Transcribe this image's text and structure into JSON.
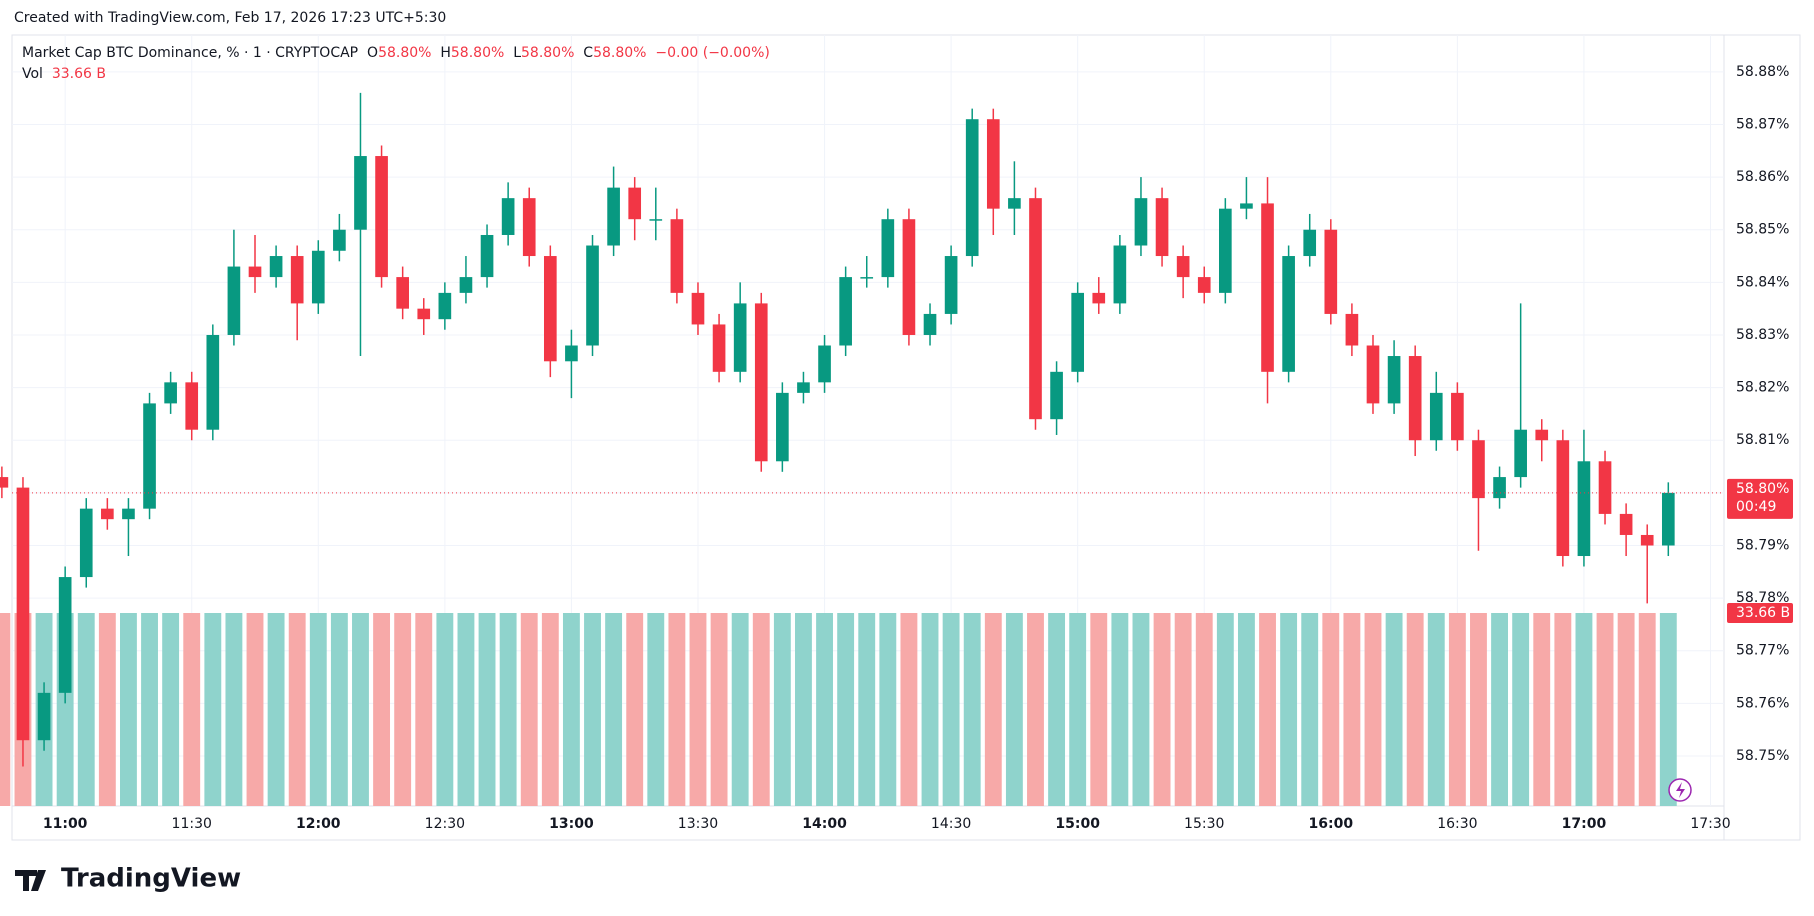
{
  "header": "Created with TradingView.com, Feb 17, 2026 17:23 UTC+5:30",
  "footer": "TradingView",
  "chart_data": {
    "type": "candlestick",
    "legend": {
      "symbol": "Market Cap BTC Dominance, % · 1 · CRYPTOCAP",
      "o_label": "O",
      "o": "58.80%",
      "h_label": "H",
      "h": "58.80%",
      "l_label": "L",
      "l": "58.80%",
      "c_label": "C",
      "c": "58.80%",
      "change": "−0.00 (−0.00%)",
      "vol_label": "Vol",
      "vol": "33.66 B"
    },
    "last_price_label": "58.80%",
    "countdown": "00:49",
    "volume_badge": "33.66 B",
    "up_color": "#089981",
    "down_color": "#f23645",
    "volume_up_color": "#8fd3cc",
    "volume_down_color": "#f7a9a8",
    "grid": true,
    "x": [
      645,
      650,
      655,
      660,
      665,
      670,
      675,
      680,
      685,
      690,
      695,
      700,
      705,
      710,
      715,
      720,
      725,
      730,
      735,
      740,
      745,
      750,
      755,
      760,
      765,
      770,
      775,
      780,
      785,
      790,
      795,
      800,
      805,
      810,
      815,
      820,
      825,
      830,
      835,
      840,
      845,
      850,
      855,
      860,
      865,
      870,
      875,
      880,
      885,
      890,
      895,
      900,
      905,
      910,
      915,
      920,
      925,
      930,
      935,
      940,
      945,
      950,
      955,
      960,
      965,
      970,
      975,
      980,
      985,
      990,
      995,
      1000,
      1005,
      1010,
      1015,
      1020,
      1025,
      1030,
      1035,
      1040
    ],
    "open": [
      58.803,
      58.801,
      58.753,
      58.762,
      58.784,
      58.797,
      58.795,
      58.797,
      58.817,
      58.821,
      58.812,
      58.83,
      58.843,
      58.841,
      58.845,
      58.836,
      58.846,
      58.85,
      58.864,
      58.841,
      58.835,
      58.833,
      58.838,
      58.841,
      58.849,
      58.856,
      58.845,
      58.825,
      58.828,
      58.847,
      58.858,
      58.852,
      58.852,
      58.838,
      58.832,
      58.823,
      58.836,
      58.806,
      58.819,
      58.821,
      58.828,
      58.841,
      58.841,
      58.852,
      58.83,
      58.834,
      58.845,
      58.871,
      58.854,
      58.856,
      58.814,
      58.823,
      58.838,
      58.836,
      58.847,
      58.856,
      58.845,
      58.841,
      58.838,
      58.854,
      58.855,
      58.823,
      58.845,
      58.85,
      58.834,
      58.828,
      58.817,
      58.826,
      58.81,
      58.819,
      58.81,
      58.799,
      58.803,
      58.812,
      58.81,
      58.788,
      58.806,
      58.796,
      58.792,
      58.79
    ],
    "high": [
      58.805,
      58.803,
      58.764,
      58.786,
      58.799,
      58.799,
      58.799,
      58.819,
      58.823,
      58.823,
      58.832,
      58.85,
      58.849,
      58.847,
      58.847,
      58.848,
      58.853,
      58.876,
      58.866,
      58.843,
      58.837,
      58.84,
      58.845,
      58.851,
      58.859,
      58.858,
      58.847,
      58.831,
      58.849,
      58.862,
      58.86,
      58.858,
      58.854,
      58.84,
      58.834,
      58.84,
      58.838,
      58.821,
      58.823,
      58.83,
      58.843,
      58.845,
      58.854,
      58.854,
      58.836,
      58.847,
      58.873,
      58.873,
      58.863,
      58.858,
      58.825,
      58.84,
      58.841,
      58.849,
      58.86,
      58.858,
      58.847,
      58.843,
      58.856,
      58.86,
      58.86,
      58.847,
      58.853,
      58.852,
      58.836,
      58.83,
      58.829,
      58.828,
      58.823,
      58.821,
      58.812,
      58.805,
      58.836,
      58.814,
      58.812,
      58.812,
      58.808,
      58.798,
      58.794,
      58.802
    ],
    "low": [
      58.799,
      58.748,
      58.751,
      58.76,
      58.782,
      58.793,
      58.788,
      58.795,
      58.815,
      58.81,
      58.81,
      58.828,
      58.838,
      58.839,
      58.829,
      58.834,
      58.844,
      58.826,
      58.839,
      58.833,
      58.83,
      58.831,
      58.836,
      58.839,
      58.847,
      58.843,
      58.822,
      58.818,
      58.826,
      58.845,
      58.848,
      58.848,
      58.836,
      58.83,
      58.821,
      58.821,
      58.804,
      58.804,
      58.817,
      58.819,
      58.826,
      58.839,
      58.839,
      58.828,
      58.828,
      58.832,
      58.843,
      58.849,
      58.849,
      58.812,
      58.811,
      58.821,
      58.834,
      58.834,
      58.845,
      58.843,
      58.837,
      58.836,
      58.836,
      58.852,
      58.817,
      58.821,
      58.843,
      58.832,
      58.826,
      58.815,
      58.815,
      58.807,
      58.808,
      58.808,
      58.789,
      58.797,
      58.801,
      58.806,
      58.786,
      58.786,
      58.794,
      58.788,
      58.779,
      58.788
    ],
    "close": [
      58.801,
      58.753,
      58.762,
      58.784,
      58.797,
      58.795,
      58.797,
      58.817,
      58.821,
      58.812,
      58.83,
      58.843,
      58.841,
      58.845,
      58.836,
      58.846,
      58.85,
      58.864,
      58.841,
      58.835,
      58.833,
      58.838,
      58.841,
      58.849,
      58.856,
      58.845,
      58.825,
      58.828,
      58.847,
      58.858,
      58.852,
      58.852,
      58.838,
      58.832,
      58.823,
      58.836,
      58.806,
      58.819,
      58.821,
      58.828,
      58.841,
      58.841,
      58.852,
      58.83,
      58.834,
      58.845,
      58.871,
      58.854,
      58.856,
      58.814,
      58.823,
      58.838,
      58.836,
      58.847,
      58.856,
      58.845,
      58.841,
      58.838,
      58.854,
      58.855,
      58.823,
      58.845,
      58.85,
      58.834,
      58.828,
      58.817,
      58.826,
      58.81,
      58.819,
      58.81,
      58.799,
      58.803,
      58.812,
      58.81,
      58.788,
      58.806,
      58.796,
      58.792,
      58.79,
      58.8
    ],
    "volume": [
      33.66,
      33.66,
      33.66,
      33.66,
      33.66,
      33.66,
      33.66,
      33.66,
      33.66,
      33.66,
      33.66,
      33.66,
      33.66,
      33.66,
      33.66,
      33.66,
      33.66,
      33.66,
      33.66,
      33.66,
      33.66,
      33.66,
      33.66,
      33.66,
      33.66,
      33.66,
      33.66,
      33.66,
      33.66,
      33.66,
      33.66,
      33.66,
      33.66,
      33.66,
      33.66,
      33.66,
      33.66,
      33.66,
      33.66,
      33.66,
      33.66,
      33.66,
      33.66,
      33.66,
      33.66,
      33.66,
      33.66,
      33.66,
      33.66,
      33.66,
      33.66,
      33.66,
      33.66,
      33.66,
      33.66,
      33.66,
      33.66,
      33.66,
      33.66,
      33.66,
      33.66,
      33.66,
      33.66,
      33.66,
      33.66,
      33.66,
      33.66,
      33.66,
      33.66,
      33.66,
      33.66,
      33.66,
      33.66,
      33.66,
      33.66,
      33.66,
      33.66,
      33.66,
      33.66,
      33.66
    ],
    "xlim": [
      647.4,
      1053.2
    ],
    "xticks": [
      {
        "value": 660,
        "label": "11:00"
      },
      {
        "value": 690,
        "label": "11:30"
      },
      {
        "value": 720,
        "label": "12:00"
      },
      {
        "value": 750,
        "label": "12:30"
      },
      {
        "value": 780,
        "label": "13:00"
      },
      {
        "value": 810,
        "label": "13:30"
      },
      {
        "value": 840,
        "label": "14:00"
      },
      {
        "value": 870,
        "label": "14:30"
      },
      {
        "value": 900,
        "label": "15:00"
      },
      {
        "value": 930,
        "label": "15:30"
      },
      {
        "value": 960,
        "label": "16:00"
      },
      {
        "value": 990,
        "label": "16:30"
      },
      {
        "value": 1020,
        "label": "17:00"
      },
      {
        "value": 1050,
        "label": "17:30"
      }
    ],
    "ylim": [
      58.7405,
      58.887
    ],
    "yticks": [
      {
        "value": 58.75,
        "label": "58.75%"
      },
      {
        "value": 58.76,
        "label": "58.76%"
      },
      {
        "value": 58.77,
        "label": "58.77%"
      },
      {
        "value": 58.78,
        "label": "58.78%"
      },
      {
        "value": 58.79,
        "label": "58.79%"
      },
      {
        "value": 58.8,
        "label": "58.80%"
      },
      {
        "value": 58.81,
        "label": "58.81%"
      },
      {
        "value": 58.82,
        "label": "58.82%"
      },
      {
        "value": 58.83,
        "label": "58.83%"
      },
      {
        "value": 58.84,
        "label": "58.84%"
      },
      {
        "value": 58.85,
        "label": "58.85%"
      },
      {
        "value": 58.86,
        "label": "58.86%"
      },
      {
        "value": 58.87,
        "label": "58.87%"
      },
      {
        "value": 58.88,
        "label": "58.88%"
      }
    ]
  }
}
